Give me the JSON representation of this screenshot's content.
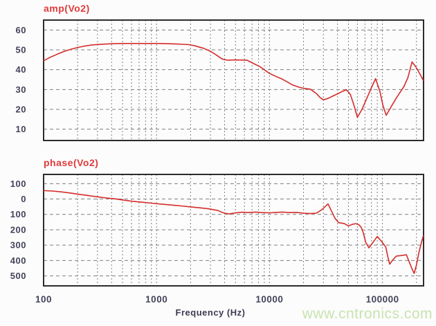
{
  "watermark": "www.cntronics.com",
  "colors": {
    "curve": "#d62b2b",
    "title": "#e13a3a",
    "axis_text": "#43435a",
    "grid": "#7f7f7f",
    "frame": "#2b2b2b",
    "background": "#fcfcfc",
    "watermark": "#c8e3af"
  },
  "xaxis": {
    "title": "Frequency (Hz)",
    "scale": "log",
    "min": 100,
    "max": 230000,
    "ticks": [
      "100",
      "1000",
      "10000",
      "100000"
    ],
    "tick_values": [
      100,
      1000,
      10000,
      100000
    ]
  },
  "chart_data": [
    {
      "type": "line",
      "key": "amp",
      "title": "amp(Vo2)",
      "ylim": [
        4.3,
        65
      ],
      "ytick_labels": [
        "60",
        "50",
        "40",
        "30",
        "20",
        "10"
      ],
      "ytick_values": [
        60,
        50,
        40,
        30,
        20,
        10
      ],
      "x": [
        100,
        115,
        132,
        152,
        175,
        200,
        230,
        265,
        300,
        350,
        420,
        500,
        600,
        700,
        850,
        1000,
        1200,
        1450,
        1700,
        1950,
        2200,
        2600,
        3000,
        3400,
        3800,
        4200,
        5000,
        6300,
        7000,
        8300,
        10000,
        11500,
        13000,
        14500,
        16000,
        18000,
        20000,
        23000,
        26000,
        28000,
        30000,
        33000,
        36000,
        40000,
        44000,
        48000,
        52000,
        56000,
        60000,
        66000,
        72000,
        80000,
        87000,
        95000,
        101000,
        108000,
        120000,
        132000,
        143000,
        155000,
        168000,
        183000,
        197000,
        214000,
        230000
      ],
      "y": [
        44.5,
        46.3,
        47.8,
        49.2,
        50.3,
        51.2,
        51.9,
        52.4,
        52.7,
        52.9,
        53.1,
        53.2,
        53.2,
        53.2,
        53.2,
        53.2,
        53.1,
        53.0,
        52.8,
        52.6,
        52.0,
        50.8,
        49.3,
        47.3,
        45.4,
        44.8,
        44.9,
        44.8,
        43.5,
        41.4,
        38.1,
        36.5,
        35.2,
        33.7,
        32.3,
        31.3,
        30.6,
        30.2,
        28.0,
        26.0,
        24.8,
        25.5,
        26.6,
        27.8,
        29.0,
        29.9,
        27.5,
        22.0,
        16.0,
        20.0,
        25.0,
        31.0,
        35.5,
        29.0,
        22.0,
        17.0,
        21.5,
        25.5,
        28.5,
        31.5,
        36.0,
        43.9,
        41.5,
        38.0,
        34.6
      ]
    },
    {
      "type": "line",
      "key": "phase",
      "title": "phase(Vo2)",
      "ylim": [
        -565,
        160
      ],
      "ytick_labels": [
        "100",
        "0",
        "100",
        "200",
        "300",
        "400",
        "500"
      ],
      "ytick_values": [
        100,
        0,
        -100,
        -200,
        -300,
        -400,
        -500
      ],
      "x": [
        100,
        120,
        145,
        175,
        210,
        250,
        300,
        360,
        430,
        520,
        620,
        750,
        900,
        1100,
        1350,
        1650,
        2000,
        2400,
        2900,
        3500,
        3900,
        4400,
        5000,
        5700,
        6500,
        7500,
        8600,
        10000,
        11500,
        13000,
        15000,
        17500,
        20000,
        23000,
        26000,
        29000,
        33000,
        35500,
        38000,
        41000,
        46000,
        50000,
        54000,
        58000,
        62000,
        65000,
        68000,
        71000,
        76000,
        82000,
        90000,
        98000,
        107000,
        112000,
        116000,
        124000,
        133000,
        145000,
        163000,
        175000,
        183000,
        191000,
        200000,
        210000,
        222000,
        230000
      ],
      "y": [
        55,
        52,
        46,
        38,
        30,
        22,
        14,
        7,
        1,
        -8,
        -15,
        -21,
        -27,
        -33,
        -39,
        -45,
        -51,
        -57,
        -64,
        -75,
        -90,
        -97,
        -90,
        -86,
        -88,
        -85,
        -88,
        -90,
        -87,
        -85,
        -88,
        -87,
        -92,
        -95,
        -92,
        -70,
        -32,
        -80,
        -125,
        -154,
        -160,
        -175,
        -165,
        -160,
        -168,
        -185,
        -225,
        -281,
        -318,
        -285,
        -244,
        -275,
        -312,
        -380,
        -424,
        -395,
        -371,
        -368,
        -363,
        -420,
        -455,
        -484,
        -430,
        -350,
        -280,
        -240
      ]
    }
  ]
}
